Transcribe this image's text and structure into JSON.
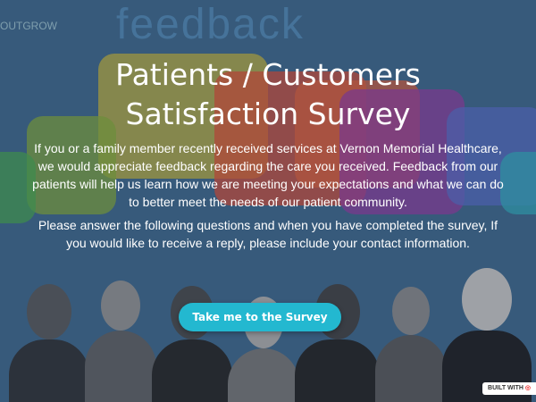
{
  "brand": "OUTGROW",
  "watermark": "feedback",
  "title_line1": "Patients / Customers",
  "title_line2": "Satisfaction Survey",
  "paragraph1": "If you or a family member recently received services at Vernon Memorial Healthcare, we would appreciate feedback regarding the care you received. Feedback from our patients will help us learn how we are meeting your expectations and what we can do to better meet the needs of our patient community.",
  "paragraph2": "Please answer the following questions and when you have completed the survey, If you would like to receive a reply, please include your contact information.",
  "cta_label": "Take me to the Survey",
  "built_with": "BUILT WITH",
  "colors": {
    "background": "#375a7b",
    "cta": "#23b8d0"
  }
}
